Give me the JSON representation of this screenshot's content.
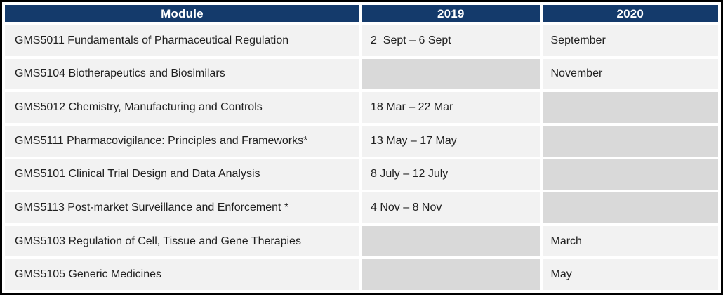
{
  "table": {
    "columns": [
      {
        "label": "Module"
      },
      {
        "label": "2019"
      },
      {
        "label": "2020"
      }
    ],
    "rows": [
      {
        "module": "GMS5011 Fundamentals of Pharmaceutical Regulation",
        "y2019": "2  Sept – 6 Sept",
        "y2020": "September"
      },
      {
        "module": "GMS5104 Biotherapeutics and Biosimilars",
        "y2019": "",
        "y2020": "November"
      },
      {
        "module": "GMS5012 Chemistry, Manufacturing and Controls",
        "y2019": "18 Mar – 22 Mar",
        "y2020": ""
      },
      {
        "module": "GMS5111 Pharmacovigilance: Principles and Frameworks*",
        "y2019": "13 May – 17 May",
        "y2020": ""
      },
      {
        "module": "GMS5101 Clinical Trial Design and Data Analysis",
        "y2019": "8 July – 12 July",
        "y2020": ""
      },
      {
        "module": "GMS5113 Post-market Surveillance and Enforcement *",
        "y2019": "4 Nov – 8 Nov",
        "y2020": ""
      },
      {
        "module": "GMS5103 Regulation of Cell, Tissue and Gene Therapies",
        "y2019": "",
        "y2020": "March"
      },
      {
        "module": "GMS5105 Generic Medicines",
        "y2019": "",
        "y2020": "May"
      }
    ]
  },
  "colors": {
    "header_bg": "#143a6b",
    "header_text": "#ffffff",
    "row_bg": "#f2f2f2",
    "empty_cell_bg": "#d9d9d9",
    "body_text": "#1f1f1f",
    "frame": "#000000"
  }
}
